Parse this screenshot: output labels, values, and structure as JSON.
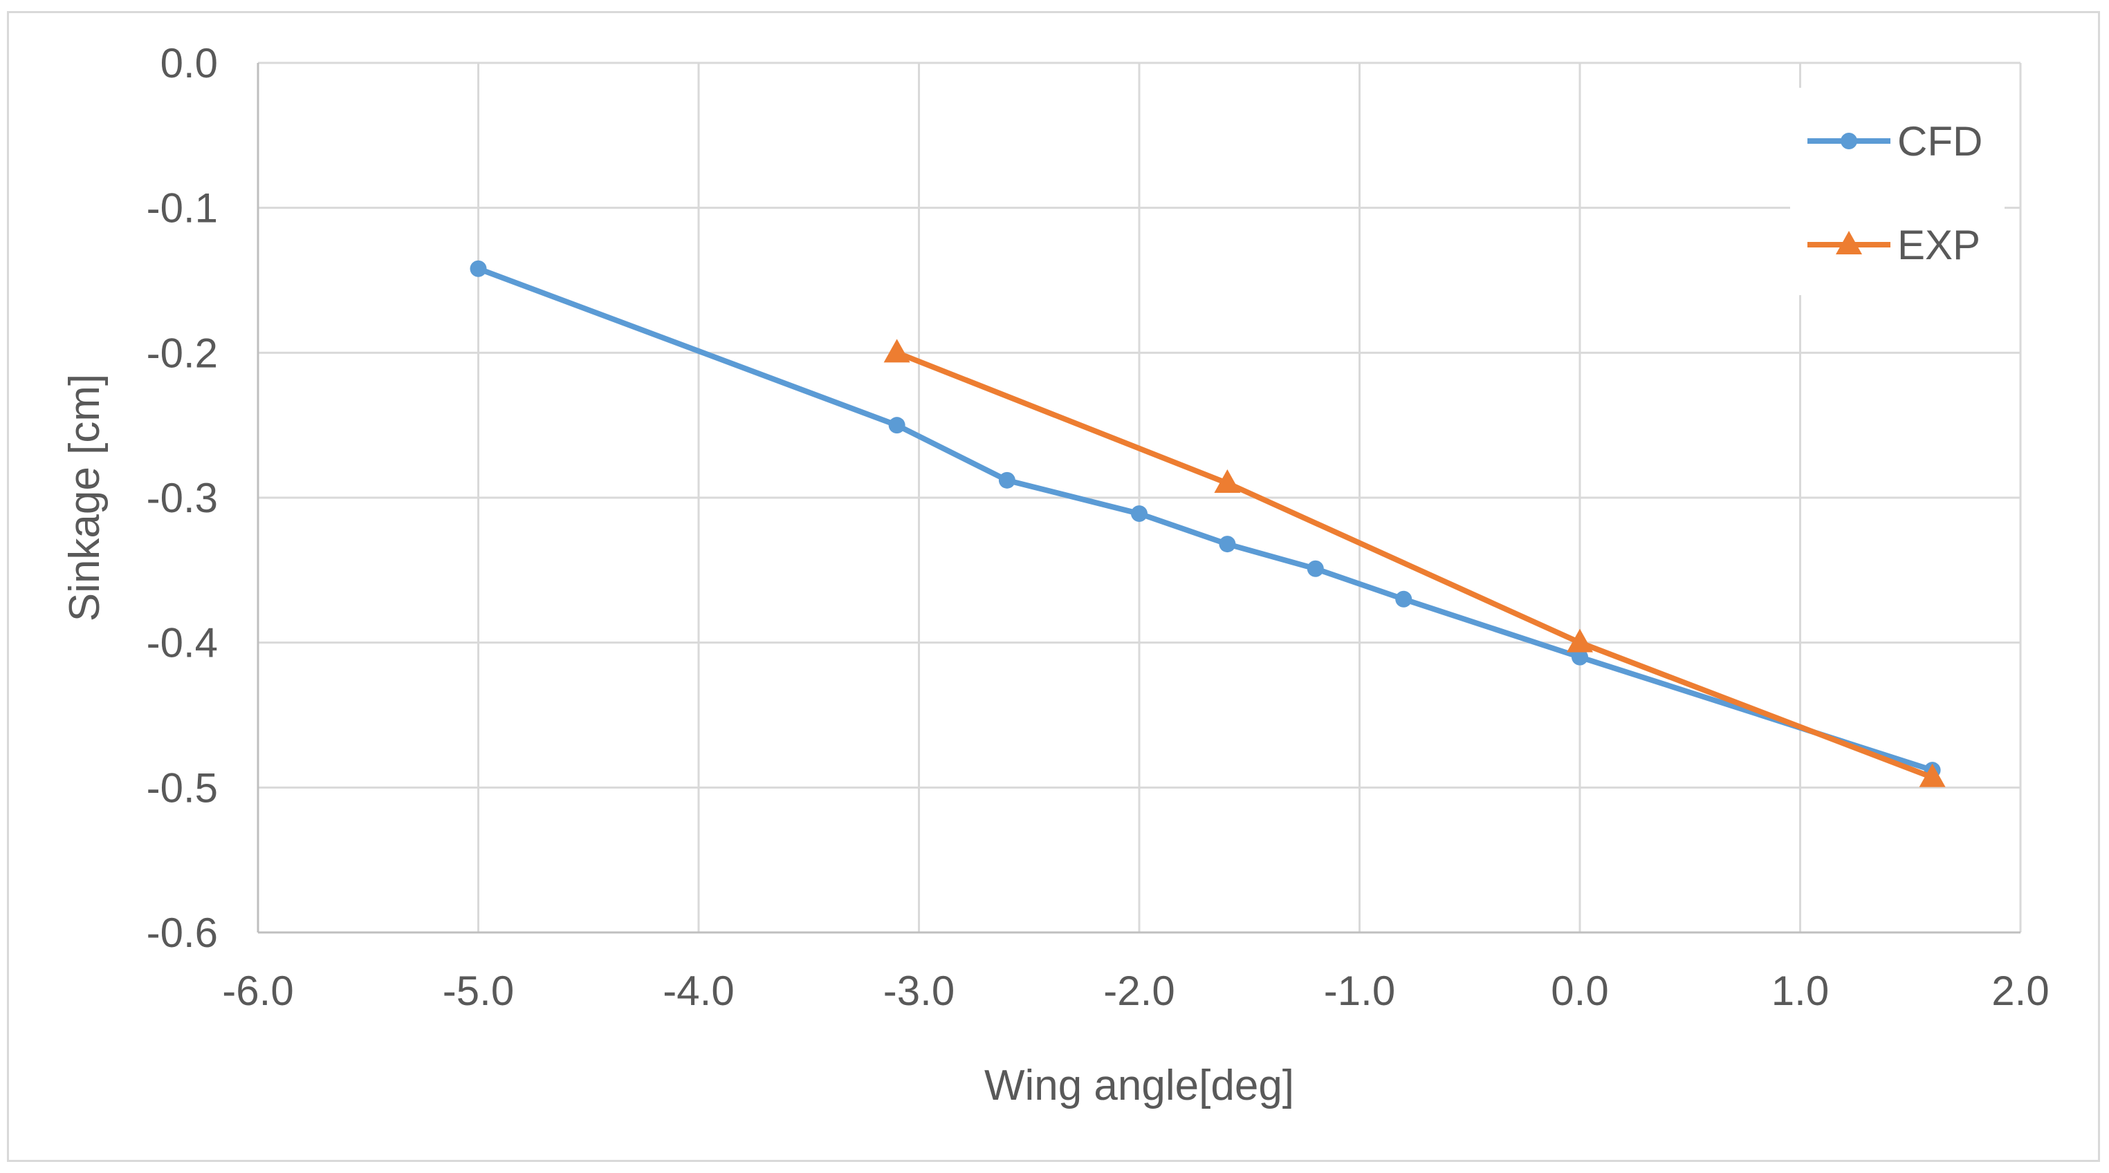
{
  "chart_data": {
    "type": "line",
    "title": "",
    "xlabel": "Wing angle[deg]",
    "ylabel": "Sinkage [cm]",
    "xlim": [
      -6.0,
      2.0
    ],
    "ylim": [
      -0.6,
      0.0
    ],
    "x_ticks": [
      "-6.0",
      "-5.0",
      "-4.0",
      "-3.0",
      "-2.0",
      "-1.0",
      "0.0",
      "1.0",
      "2.0"
    ],
    "x_tick_values": [
      -6,
      -5,
      -4,
      -3,
      -2,
      -1,
      0,
      1,
      2
    ],
    "y_ticks": [
      "0.0",
      "-0.1",
      "-0.2",
      "-0.3",
      "-0.4",
      "-0.5",
      "-0.6"
    ],
    "y_tick_values": [
      0.0,
      -0.1,
      -0.2,
      -0.3,
      -0.4,
      -0.5,
      -0.6
    ],
    "grid": true,
    "legend_position": "top-right",
    "series": [
      {
        "name": "CFD",
        "color": "#5b9bd5",
        "marker": "circle",
        "x": [
          -5.0,
          -3.1,
          -2.6,
          -2.0,
          -1.6,
          -1.2,
          -0.8,
          0.0,
          1.6
        ],
        "y": [
          -0.142,
          -0.25,
          -0.288,
          -0.311,
          -0.332,
          -0.349,
          -0.37,
          -0.41,
          -0.488
        ]
      },
      {
        "name": "EXP",
        "color": "#ed7d31",
        "marker": "triangle",
        "x": [
          -3.1,
          -1.6,
          0.0,
          1.6
        ],
        "y": [
          -0.2,
          -0.29,
          -0.4,
          -0.493
        ]
      }
    ]
  }
}
